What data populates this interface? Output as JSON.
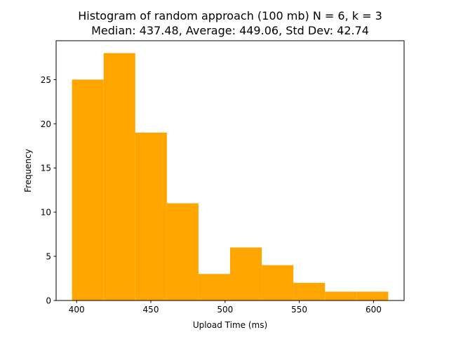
{
  "chart_data": {
    "type": "bar",
    "subtype": "histogram",
    "title_line1": "Histogram of random approach (100 mb) N = 6, k = 3",
    "title_line2": "Median: 437.48, Average: 449.06, Std Dev: 42.74",
    "xlabel": "Upload Time (ms)",
    "ylabel": "Frequency",
    "bin_edges": [
      396.9,
      418.2,
      439.5,
      460.8,
      482.1,
      503.4,
      524.7,
      546.0,
      567.3,
      588.6,
      609.9
    ],
    "values": [
      25,
      28,
      19,
      11,
      3,
      6,
      4,
      2,
      1,
      1
    ],
    "xlim": [
      386.2,
      620.6
    ],
    "ylim": [
      0,
      29.4
    ],
    "xticks": [
      400,
      450,
      500,
      550,
      600
    ],
    "yticks": [
      0,
      5,
      10,
      15,
      20,
      25
    ],
    "bar_color": "#ffa500",
    "grid": false,
    "legend": "none"
  }
}
